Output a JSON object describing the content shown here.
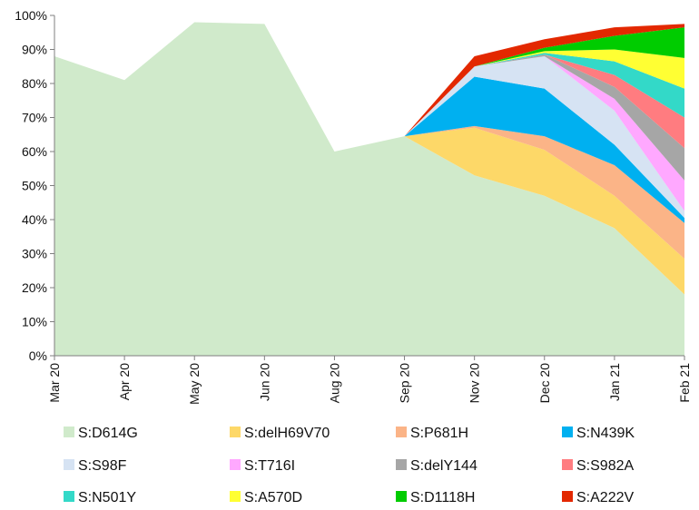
{
  "chart_data": {
    "type": "area",
    "stacked": true,
    "title": "",
    "xlabel": "",
    "ylabel": "",
    "ylim": [
      0,
      100
    ],
    "y_ticks": [
      0,
      10,
      20,
      30,
      40,
      50,
      60,
      70,
      80,
      90,
      100
    ],
    "y_tick_format": "{v}%",
    "categories": [
      "Mar 20",
      "Apr 20",
      "May 20",
      "Jun 20",
      "Aug 20",
      "Sep 20",
      "Nov 20",
      "Dec 20",
      "Jan 21",
      "Feb 21"
    ],
    "legend_position": "bottom",
    "series": [
      {
        "name": "S:D614G",
        "color": "#D0EACB",
        "values": [
          88,
          81,
          98,
          97.5,
          60,
          64.5,
          53,
          47,
          37.5,
          18
        ]
      },
      {
        "name": "S:delH69V70",
        "color": "#FDD868",
        "values": [
          0,
          0,
          0,
          0,
          0,
          0,
          14,
          13.5,
          9.5,
          10.5
        ]
      },
      {
        "name": "S:P681H",
        "color": "#FBB487",
        "values": [
          0,
          0,
          0,
          0,
          0,
          0,
          0.5,
          4,
          9,
          10.5
        ]
      },
      {
        "name": "S:N439K",
        "color": "#00B0F0",
        "values": [
          0,
          0,
          0,
          0,
          0,
          0,
          14.5,
          14,
          6,
          1.5
        ]
      },
      {
        "name": "S:S98F",
        "color": "#D6E3F3",
        "values": [
          0,
          0,
          0,
          0,
          0,
          0,
          3,
          9.5,
          10,
          2
        ]
      },
      {
        "name": "S:T716I",
        "color": "#FFA8FF",
        "values": [
          0,
          0,
          0,
          0,
          0,
          0,
          0,
          0,
          3.5,
          9
        ]
      },
      {
        "name": "S:delY144",
        "color": "#A6A6A6",
        "values": [
          0,
          0,
          0,
          0,
          0,
          0,
          0,
          0.5,
          3.5,
          9.5
        ]
      },
      {
        "name": "S:S982A",
        "color": "#FF7C80",
        "values": [
          0,
          0,
          0,
          0,
          0,
          0,
          0,
          0,
          3.5,
          9
        ]
      },
      {
        "name": "S:N501Y",
        "color": "#33D9C8",
        "values": [
          0,
          0,
          0,
          0,
          0,
          0,
          0,
          0.5,
          4,
          8.5
        ]
      },
      {
        "name": "S:A570D",
        "color": "#FFFF33",
        "values": [
          0,
          0,
          0,
          0,
          0,
          0,
          0,
          0.5,
          3.5,
          9
        ]
      },
      {
        "name": "S:D1118H",
        "color": "#00CC00",
        "values": [
          0,
          0,
          0,
          0,
          0,
          0,
          0,
          1,
          4,
          9
        ]
      },
      {
        "name": "S:A222V",
        "color": "#E32800",
        "values": [
          0,
          0,
          0,
          0,
          0,
          0,
          3,
          2.5,
          2.5,
          1
        ]
      }
    ]
  }
}
